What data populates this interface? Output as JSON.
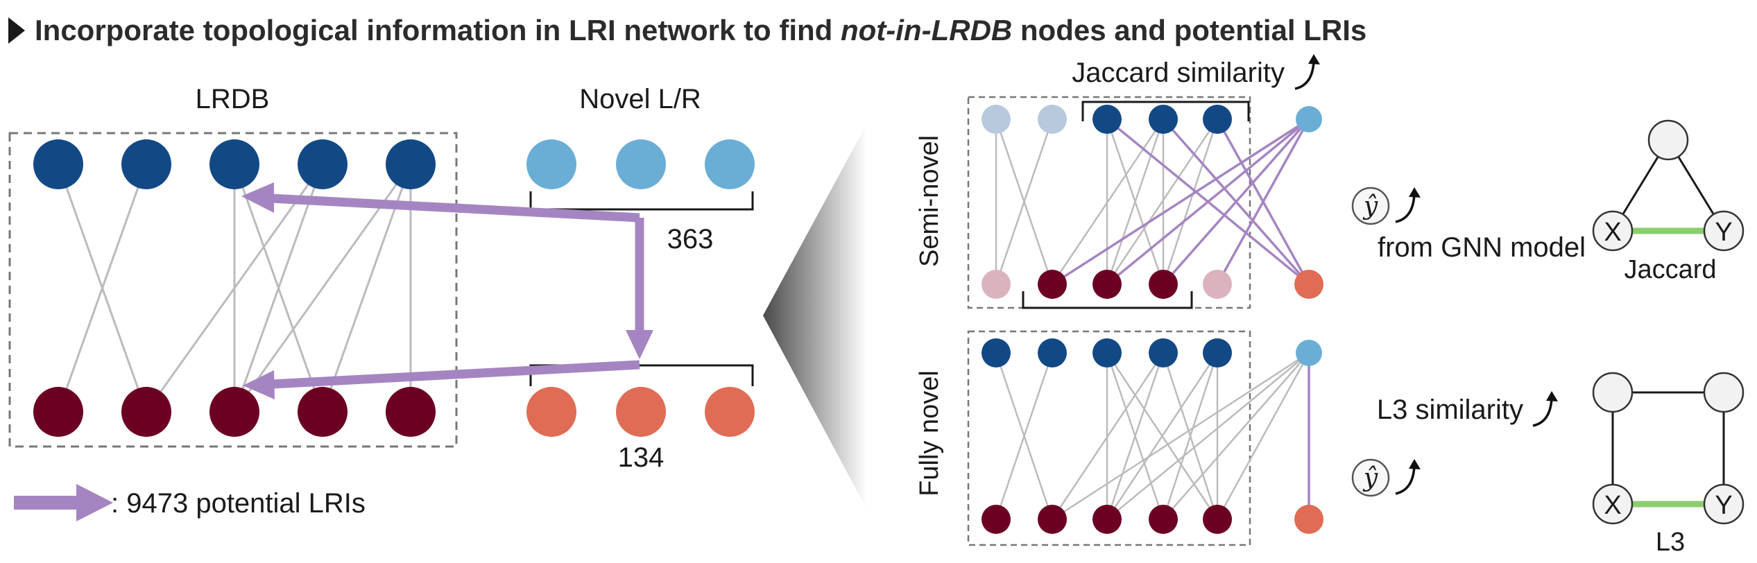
{
  "title": {
    "prefix": "Incorporate topological information in LRI network to find ",
    "emphasis": "not-in-LRDB",
    "suffix": " nodes and potential LRIs"
  },
  "left_panel": {
    "lrdb_label": "LRDB",
    "novel_label": "Novel L/R",
    "novel_ligand_count": "363",
    "novel_receptor_count": "134",
    "legend_text": ": 9473 potential LRIs"
  },
  "right_panel": {
    "semi_novel_label": "Semi-novel",
    "fully_novel_label": "Fully novel",
    "jaccard_similarity_label": "Jaccard similarity",
    "gnn_label": "from GNN model",
    "l3_similarity_label": "L3 similarity",
    "yhat_symbol": "ŷ",
    "jaccard_motif_label": "Jaccard",
    "l3_motif_label": "L3",
    "motif_x": "X",
    "motif_y": "Y"
  },
  "colors": {
    "ligand_dark_blue": "#124985",
    "ligand_light_blue": "#6aaed6",
    "ligand_faded": "#b8c9dc",
    "receptor_dark_red": "#6b0023",
    "receptor_orange": "#e06c55",
    "receptor_faded": "#dbb3bf",
    "lri_arrow": "#a585c1",
    "similarity_edge": "#8ccd6e",
    "edge_gray": "#bbbbbb"
  }
}
